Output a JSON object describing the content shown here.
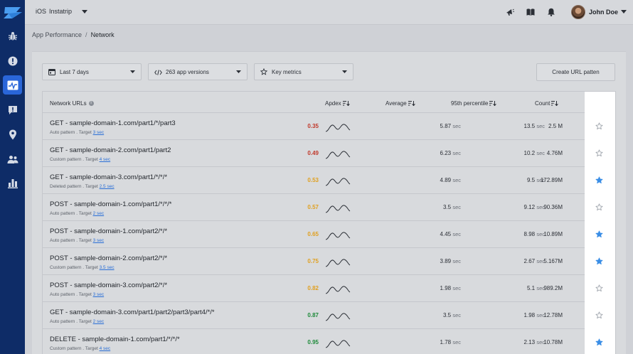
{
  "topbar": {
    "platform": "iOS",
    "app_name": "Instatrip",
    "user_name": "John Doe"
  },
  "sidebar": {
    "items": [
      {
        "icon": "bug-icon"
      },
      {
        "icon": "crash-alert-icon"
      },
      {
        "icon": "performance-icon",
        "active": true
      },
      {
        "icon": "feedback-icon"
      },
      {
        "icon": "location-icon"
      },
      {
        "icon": "users-icon"
      },
      {
        "icon": "analytics-icon"
      }
    ]
  },
  "breadcrumb": {
    "parent": "App Performance",
    "separator": "/",
    "current": "Network"
  },
  "filters": {
    "date_range": "Last 7 days",
    "versions": "263 app versions",
    "metrics": "Key metrics",
    "create_button": "Create URL patten"
  },
  "table": {
    "headers": {
      "url": "Network URLs",
      "apdex": "Apdex",
      "average": "Average",
      "p95": "95th percentile",
      "count": "Count"
    },
    "unit": "sec",
    "rows": [
      {
        "url": "GET - sample-domain-1.com/part1/*/part3",
        "pattern": "Auto pattern",
        "target": "3 sec",
        "apdex": "0.35",
        "apdex_color": "#c0392b",
        "average": "5.87",
        "p95": "13.5",
        "count": "2.5 M",
        "starred": false
      },
      {
        "url": "GET - sample-domain-2.com/part1/part2",
        "pattern": "Custom pattern",
        "target": "4 sec",
        "apdex": "0.49",
        "apdex_color": "#c0392b",
        "average": "6.23",
        "p95": "10.2",
        "count": "4.76M",
        "starred": false
      },
      {
        "url": "GET - sample-domain-3.com/part1/*/*/*",
        "pattern": "Deleted pattern",
        "target": "2.5 sec",
        "apdex": "0.53",
        "apdex_color": "#e0a020",
        "average": "4.89",
        "p95": "9.5",
        "count": "172.89M",
        "starred": true
      },
      {
        "url": "POST - sample-domain-1.com/part1/*/*/*",
        "pattern": "Auto pattern",
        "target": "2 sec",
        "apdex": "0.57",
        "apdex_color": "#e0a020",
        "average": "3.5",
        "p95": "9.12",
        "count": "90.36M",
        "starred": false
      },
      {
        "url": "POST - sample-domain-1.com/part2/*/*",
        "pattern": "Auto pattern",
        "target": "3 sec",
        "apdex": "0.65",
        "apdex_color": "#e0a020",
        "average": "4.45",
        "p95": "8.98",
        "count": "10.89M",
        "starred": true
      },
      {
        "url": "POST - sample-domain-2.com/part2/*/*",
        "pattern": "Custom pattern",
        "target": "3.5 sec",
        "apdex": "0.75",
        "apdex_color": "#e0a020",
        "average": "3.89",
        "p95": "2.67",
        "count": "5.167M",
        "starred": true
      },
      {
        "url": "POST - sample-domain-3.com/part2/*/*",
        "pattern": "Auto pattern",
        "target": "3 sec",
        "apdex": "0.82",
        "apdex_color": "#e0a020",
        "average": "1.98",
        "p95": "5.1",
        "count": "989.2M",
        "starred": false
      },
      {
        "url": "GET - sample-domain-3.com/part1/part2/part3/part4/*/*",
        "pattern": "Auto pattern",
        "target": "2 sec",
        "apdex": "0.87",
        "apdex_color": "#1e8a3a",
        "average": "3.5",
        "p95": "1.98",
        "count": "12.78M",
        "starred": false
      },
      {
        "url": "DELETE - sample-domain-1.com/part1/*/*/*",
        "pattern": "Custom pattern",
        "target": "4 sec",
        "apdex": "0.95",
        "apdex_color": "#1e8a3a",
        "average": "1.78",
        "p95": "2.13",
        "count": "10.78M",
        "starred": true
      }
    ]
  },
  "colors": {
    "sidebar": "#0e2c67",
    "sidebar_active": "#2a66d9",
    "star_filled": "#3a8ee6",
    "link": "#2a6fd6"
  }
}
